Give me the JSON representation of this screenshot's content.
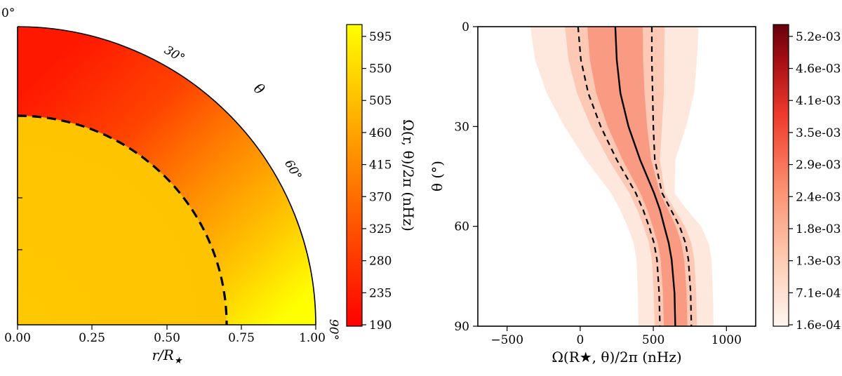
{
  "chart_data": [
    {
      "type": "heatmap",
      "subtype": "polar-quadrant",
      "xlabel": "r/R",
      "xlabel_subscript": "★",
      "xlim": [
        0.0,
        1.0
      ],
      "xticks": [
        "0.00",
        "0.25",
        "0.50",
        "0.75",
        "1.00"
      ],
      "angle_ticks": [
        "0°",
        "30°",
        "60°",
        "90°"
      ],
      "angle_label": "θ",
      "core_boundary_r": 0.7,
      "core_rate_nhz": 560,
      "envelope_rate_nhz": {
        "theta_0": 240,
        "theta_90": 610
      },
      "colorbar": {
        "label": "Ω(r, θ)/2π (nHz)",
        "range": [
          190,
          615
        ],
        "ticks": [
          "190",
          "235",
          "280",
          "325",
          "370",
          "415",
          "460",
          "505",
          "550",
          "595"
        ],
        "colormap": "autumn",
        "colors": [
          "#ff0000",
          "#ffff00"
        ]
      }
    },
    {
      "type": "heatmap",
      "subtype": "posterior-density",
      "xlabel": "Ω(R★, θ)/2π (nHz)",
      "ylabel": "θ (°)",
      "xlim": [
        -700,
        1200
      ],
      "ylim": [
        0,
        90
      ],
      "xticks": [
        "−500",
        "0",
        "500",
        "1000"
      ],
      "yticks": [
        "0",
        "30",
        "60",
        "90"
      ],
      "theta": [
        0,
        10,
        20,
        30,
        40,
        50,
        55,
        60,
        65,
        70,
        80,
        90
      ],
      "median": [
        240,
        250,
        275,
        330,
        410,
        505,
        545,
        575,
        605,
        625,
        645,
        650
      ],
      "lower": [
        -15,
        5,
        55,
        140,
        250,
        380,
        430,
        470,
        505,
        525,
        540,
        545
      ],
      "upper": [
        490,
        490,
        495,
        500,
        510,
        560,
        620,
        680,
        720,
        740,
        755,
        760
      ],
      "colorbar": {
        "range": [
          0.00016,
          0.0058
        ],
        "ticks": [
          "1.6e-04",
          "7.1e-04",
          "1.3e-03",
          "1.8e-03",
          "2.4e-03",
          "2.9e-03",
          "3.5e-03",
          "4.1e-03",
          "4.6e-03",
          "5.2e-03"
        ],
        "colormap": "Reds",
        "colors": [
          "#fff5f0",
          "#fdd0b8",
          "#fc9272",
          "#ef3b2c",
          "#a50f15",
          "#67000d"
        ]
      }
    }
  ]
}
